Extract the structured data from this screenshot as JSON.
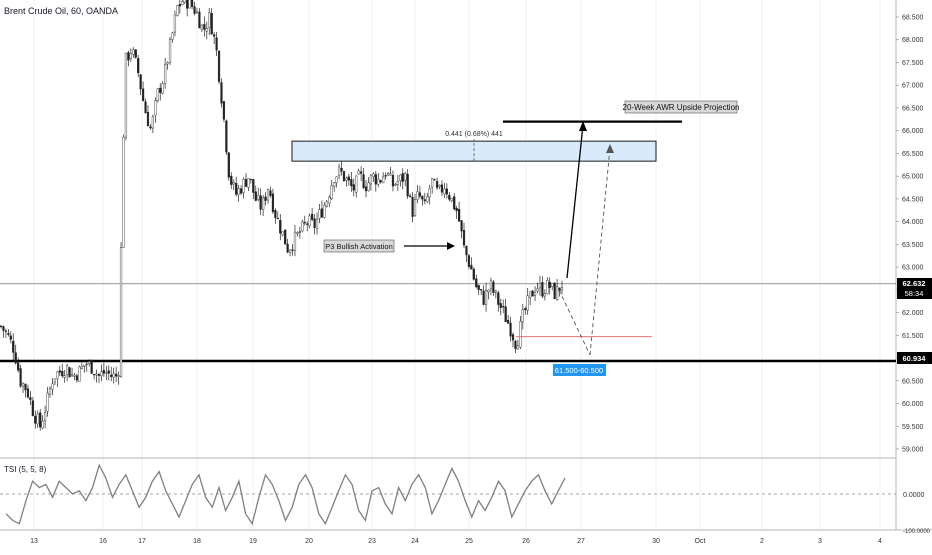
{
  "header": {
    "symbol_title": "Brent Crude Oil, 60, OANDA"
  },
  "indicator": {
    "title": "TSI (5, 5, 8)",
    "zero_label": "0.0000",
    "bottom_label": "-100.0000"
  },
  "annotations": {
    "zone_measure": "0.441 (0.68%) 441",
    "awr_label": "20-Week AWR Upside Projection",
    "p3_label": "P3 Bullish Activation",
    "target_range": "61.500-60.500"
  },
  "price_badges": {
    "last_price": "62.632",
    "countdown": "58:34",
    "support_price": "60.934"
  },
  "colors": {
    "candle": "#222222",
    "zone_fill": "#d9ebfb",
    "zone_border": "#1b1b1b",
    "target_badge": "#2196f3",
    "stop_line": "#e57373",
    "tsi_line": "#7f7f7f"
  },
  "chart_data": {
    "type": "candlestick",
    "symbol": "Brent Crude Oil",
    "timeframe": "60",
    "source": "OANDA",
    "y_ticks": [
      "68.500",
      "68.000",
      "67.500",
      "67.000",
      "66.500",
      "66.000",
      "65.500",
      "65.000",
      "64.500",
      "64.000",
      "63.500",
      "63.000",
      "62.500",
      "62.000",
      "61.500",
      "61.000",
      "60.500",
      "60.000",
      "59.500",
      "59.000"
    ],
    "x_ticks": [
      "13",
      "16",
      "17",
      "18",
      "19",
      "20",
      "23",
      "24",
      "25",
      "26",
      "27",
      "30",
      "Oct",
      "2",
      "3",
      "4"
    ],
    "ylim": [
      58.8,
      68.7
    ],
    "price_path": [
      61.7,
      61.5,
      61.2,
      60.5,
      60.3,
      59.8,
      59.5,
      60.0,
      60.6,
      60.7,
      60.8,
      60.6,
      60.7,
      60.9,
      60.8,
      60.6,
      60.7,
      60.6,
      60.6,
      67.5,
      67.8,
      67.3,
      66.5,
      66.0,
      66.8,
      67.2,
      67.9,
      68.7,
      68.9,
      68.8,
      68.6,
      68.2,
      68.5,
      67.8,
      66.5,
      65.0,
      64.6,
      64.8,
      65.0,
      64.5,
      64.3,
      64.8,
      64.2,
      63.8,
      63.4,
      63.6,
      63.8,
      64.0,
      63.9,
      64.2,
      64.5,
      65.0,
      65.1,
      64.9,
      64.7,
      65.0,
      64.8,
      65.0,
      64.9,
      65.1,
      64.8,
      64.9,
      65.0,
      64.2,
      64.6,
      64.3,
      64.9,
      64.6,
      64.8,
      64.5,
      64.2,
      63.4,
      63.0,
      62.5,
      62.3,
      62.6,
      62.3,
      62.0,
      61.7,
      61.3,
      61.9,
      62.3,
      62.6,
      62.5,
      62.6,
      62.4,
      62.63
    ],
    "levels": {
      "resistance_zone": [
        65.33,
        65.77
      ],
      "support_line": 60.934,
      "current_price": 62.632,
      "stop_level": 61.47,
      "awr_projection": 66.2
    },
    "tsi": {
      "params": "5, 5, 8",
      "zero_line": 0.0,
      "ylim": [
        -100,
        100
      ],
      "values": [
        -60,
        -80,
        -90,
        -20,
        40,
        20,
        30,
        -10,
        40,
        20,
        0,
        10,
        -20,
        20,
        90,
        50,
        -10,
        30,
        60,
        10,
        -40,
        -10,
        40,
        70,
        10,
        -30,
        -70,
        -20,
        30,
        60,
        -10,
        -40,
        20,
        -50,
        -10,
        40,
        -60,
        -90,
        -10,
        60,
        30,
        -20,
        -80,
        -40,
        30,
        60,
        20,
        -60,
        -90,
        -40,
        10,
        60,
        30,
        -50,
        -80,
        10,
        20,
        -30,
        -60,
        20,
        -20,
        30,
        60,
        20,
        -60,
        -20,
        30,
        80,
        40,
        -20,
        -70,
        -20,
        -50,
        -10,
        40,
        10,
        -70,
        -30,
        10,
        40,
        60,
        10,
        -30,
        10,
        50
      ]
    }
  }
}
